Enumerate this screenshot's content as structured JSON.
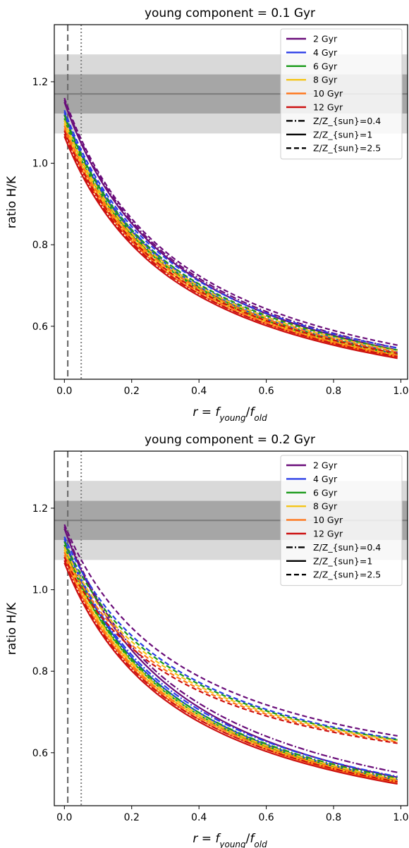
{
  "chart_data": [
    {
      "type": "line",
      "title": "young component = 0.1 Gyr",
      "xlabel": "r = f_young/f_old",
      "ylabel": "ratio H/K",
      "xlim": [
        -0.03,
        1.02
      ],
      "ylim": [
        0.47,
        1.34
      ],
      "xticks": [
        "0.0",
        "0.2",
        "0.4",
        "0.6",
        "0.8",
        "1.0"
      ],
      "xtick_values": [
        0,
        0.2,
        0.4,
        0.6,
        0.8,
        1.0
      ],
      "yticks": [
        "0.6",
        "0.8",
        "1.0",
        "1.2"
      ],
      "ytick_values": [
        0.6,
        0.8,
        1.0,
        1.2
      ],
      "observed_ratio": 1.17,
      "band_inner": [
        1.122,
        1.218
      ],
      "band_outer": [
        1.073,
        1.267
      ],
      "vlines": [
        {
          "x": 0.01,
          "style": "dashed"
        },
        {
          "x": 0.05,
          "style": "dotted"
        }
      ],
      "legend_position": "upper right",
      "series": [
        {
          "name": "2 Gyr",
          "color": "#6a0d7a",
          "curves": [
            {
              "metallicity": "0.4",
              "start": 1.155,
              "end": 0.545
            },
            {
              "metallicity": "1",
              "start": 1.15,
              "end": 0.54
            },
            {
              "metallicity": "2.5",
              "start": 1.16,
              "end": 0.552
            }
          ]
        },
        {
          "name": "4 Gyr",
          "color": "#2a3de6",
          "curves": [
            {
              "metallicity": "0.4",
              "start": 1.125,
              "end": 0.535
            },
            {
              "metallicity": "1",
              "start": 1.12,
              "end": 0.53
            },
            {
              "metallicity": "2.5",
              "start": 1.13,
              "end": 0.545
            }
          ]
        },
        {
          "name": "6 Gyr",
          "color": "#1a9a1a",
          "curves": [
            {
              "metallicity": "0.4",
              "start": 1.11,
              "end": 0.532
            },
            {
              "metallicity": "1",
              "start": 1.105,
              "end": 0.528
            },
            {
              "metallicity": "2.5",
              "start": 1.118,
              "end": 0.54
            }
          ]
        },
        {
          "name": "8 Gyr",
          "color": "#f5c518",
          "curves": [
            {
              "metallicity": "0.4",
              "start": 1.098,
              "end": 0.53
            },
            {
              "metallicity": "1",
              "start": 1.092,
              "end": 0.526
            },
            {
              "metallicity": "2.5",
              "start": 1.105,
              "end": 0.538
            }
          ]
        },
        {
          "name": "10 Gyr",
          "color": "#ff7518",
          "curves": [
            {
              "metallicity": "0.4",
              "start": 1.085,
              "end": 0.527
            },
            {
              "metallicity": "1",
              "start": 1.08,
              "end": 0.523
            },
            {
              "metallicity": "2.5",
              "start": 1.092,
              "end": 0.535
            }
          ]
        },
        {
          "name": "12 Gyr",
          "color": "#cc1010",
          "curves": [
            {
              "metallicity": "0.4",
              "start": 1.072,
              "end": 0.524
            },
            {
              "metallicity": "1",
              "start": 1.066,
              "end": 0.52
            },
            {
              "metallicity": "2.5",
              "start": 1.08,
              "end": 0.532
            }
          ]
        }
      ],
      "linestyle_legend": [
        {
          "name": "Z/Z_{sun}=0.4",
          "style": "dashdot"
        },
        {
          "name": "Z/Z_{sun}=1",
          "style": "solid"
        },
        {
          "name": "Z/Z_{sun}=2.5",
          "style": "dashed"
        }
      ]
    },
    {
      "type": "line",
      "title": "young component = 0.2 Gyr",
      "xlabel": "r = f_young/f_old",
      "ylabel": "ratio H/K",
      "xlim": [
        -0.03,
        1.02
      ],
      "ylim": [
        0.47,
        1.34
      ],
      "xticks": [
        "0.0",
        "0.2",
        "0.4",
        "0.6",
        "0.8",
        "1.0"
      ],
      "xtick_values": [
        0,
        0.2,
        0.4,
        0.6,
        0.8,
        1.0
      ],
      "yticks": [
        "0.6",
        "0.8",
        "1.0",
        "1.2"
      ],
      "ytick_values": [
        0.6,
        0.8,
        1.0,
        1.2
      ],
      "observed_ratio": 1.17,
      "band_inner": [
        1.122,
        1.218
      ],
      "band_outer": [
        1.073,
        1.267
      ],
      "vlines": [
        {
          "x": 0.01,
          "style": "dashed"
        },
        {
          "x": 0.05,
          "style": "dotted"
        }
      ],
      "legend_position": "upper right",
      "series": [
        {
          "name": "2 Gyr",
          "color": "#6a0d7a",
          "curves": [
            {
              "metallicity": "0.4",
              "start": 1.155,
              "end": 0.55
            },
            {
              "metallicity": "1",
              "start": 1.15,
              "end": 0.538
            },
            {
              "metallicity": "2.5",
              "start": 1.16,
              "end": 0.64
            }
          ]
        },
        {
          "name": "4 Gyr",
          "color": "#2a3de6",
          "curves": [
            {
              "metallicity": "0.4",
              "start": 1.125,
              "end": 0.54
            },
            {
              "metallicity": "1",
              "start": 1.12,
              "end": 0.532
            },
            {
              "metallicity": "2.5",
              "start": 1.13,
              "end": 0.632
            }
          ]
        },
        {
          "name": "6 Gyr",
          "color": "#1a9a1a",
          "curves": [
            {
              "metallicity": "0.4",
              "start": 1.11,
              "end": 0.536
            },
            {
              "metallicity": "1",
              "start": 1.105,
              "end": 0.53
            },
            {
              "metallicity": "2.5",
              "start": 1.118,
              "end": 0.63
            }
          ]
        },
        {
          "name": "8 Gyr",
          "color": "#f5c518",
          "curves": [
            {
              "metallicity": "0.4",
              "start": 1.098,
              "end": 0.533
            },
            {
              "metallicity": "1",
              "start": 1.092,
              "end": 0.528
            },
            {
              "metallicity": "2.5",
              "start": 1.105,
              "end": 0.628
            }
          ]
        },
        {
          "name": "10 Gyr",
          "color": "#ff7518",
          "curves": [
            {
              "metallicity": "0.4",
              "start": 1.085,
              "end": 0.53
            },
            {
              "metallicity": "1",
              "start": 1.08,
              "end": 0.525
            },
            {
              "metallicity": "2.5",
              "start": 1.092,
              "end": 0.625
            }
          ]
        },
        {
          "name": "12 Gyr",
          "color": "#cc1010",
          "curves": [
            {
              "metallicity": "0.4",
              "start": 1.072,
              "end": 0.527
            },
            {
              "metallicity": "1",
              "start": 1.066,
              "end": 0.522
            },
            {
              "metallicity": "2.5",
              "start": 1.08,
              "end": 0.622
            }
          ]
        }
      ],
      "linestyle_legend": [
        {
          "name": "Z/Z_{sun}=0.4",
          "style": "dashdot"
        },
        {
          "name": "Z/Z_{sun}=1",
          "style": "solid"
        },
        {
          "name": "Z/Z_{sun}=2.5",
          "style": "dashed"
        }
      ]
    }
  ]
}
